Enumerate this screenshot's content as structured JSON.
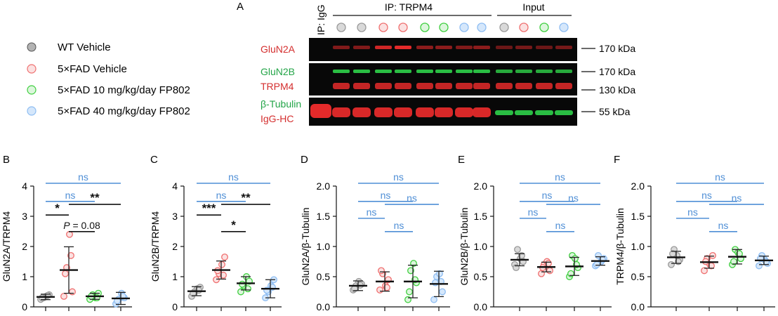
{
  "legend": [
    {
      "label": "WT Vehicle",
      "color": "#9a9a9a"
    },
    {
      "label": "5×FAD Vehicle",
      "color": "#ef6f6f"
    },
    {
      "label": "5×FAD 10 mg/kg/day FP802",
      "color": "#3fcf3f"
    },
    {
      "label": "5×FAD 40 mg/kg/day FP802",
      "color": "#8ebdf2"
    }
  ],
  "blot": {
    "panel_letter": "A",
    "ip_igg_label": "IP: IgG",
    "ip_trpm4_label": "IP: TRPM4",
    "input_label": "Input",
    "lane_groups": [
      0,
      0,
      1,
      1,
      2,
      2,
      3,
      3,
      0,
      1,
      2,
      3
    ],
    "row1": {
      "labels": [
        {
          "text": "GluN2A",
          "color": "#d42e2e"
        }
      ],
      "markers": [
        "170 kDa"
      ]
    },
    "row2": {
      "labels": [
        {
          "text": "GluN2B",
          "color": "#22a447"
        },
        {
          "text": "TRPM4",
          "color": "#d42e2e"
        }
      ],
      "markers": [
        "170 kDa",
        "130 kDa"
      ]
    },
    "row3": {
      "labels": [
        {
          "text": "β-Tubulin",
          "color": "#22a447"
        },
        {
          "text": "IgG-HC",
          "color": "#d42e2e"
        }
      ],
      "markers": [
        "55 kDa"
      ]
    }
  },
  "colors": {
    "ns": "#4f8fd6",
    "sig": "#111111",
    "blot_red": "#e42a2a",
    "blot_green": "#2fd24a"
  },
  "chart_data": [
    {
      "type": "scatter",
      "panel": "B",
      "title": "",
      "xlabel": "",
      "ylabel": "GluN2A/TRPM4",
      "ylim": [
        0,
        4
      ],
      "yticks": [
        "0",
        "1",
        "2",
        "3",
        "4"
      ],
      "categories": [
        "WT Vehicle",
        "5×FAD Vehicle",
        "5×FAD 10 mg/kg/day FP802",
        "5×FAD 40 mg/kg/day FP802"
      ],
      "mean": [
        0.33,
        1.22,
        0.35,
        0.28
      ],
      "sd": [
        0.09,
        0.77,
        0.1,
        0.2
      ],
      "points": [
        [
          0.25,
          0.3,
          0.35,
          0.4,
          0.3,
          0.38
        ],
        [
          0.35,
          1.3,
          2.4,
          0.5,
          1.1,
          1.7
        ],
        [
          0.25,
          0.4,
          0.3,
          0.45,
          0.35,
          0.3
        ],
        [
          0.1,
          0.25,
          0.45,
          0.3,
          0.2,
          0.35
        ]
      ],
      "comparisons": [
        {
          "g1": 0,
          "g2": 3,
          "label": "ns",
          "kind": "ns",
          "y": 4.0
        },
        {
          "g1": 0,
          "g2": 2,
          "label": "ns",
          "kind": "ns",
          "y": 3.4
        },
        {
          "g1": 0,
          "g2": 1,
          "label": "*",
          "kind": "sig",
          "y": 2.95
        },
        {
          "g1": 1,
          "g2": 3,
          "label": "**",
          "kind": "sig",
          "y": 3.3
        },
        {
          "g1": 1,
          "g2": 2,
          "label": "P = 0.08",
          "kind": "sig",
          "y": 2.4
        }
      ]
    },
    {
      "type": "scatter",
      "panel": "C",
      "title": "",
      "xlabel": "",
      "ylabel": "GluN2B/TRPM4",
      "ylim": [
        0,
        4
      ],
      "yticks": [
        "0",
        "1",
        "2",
        "3",
        "4"
      ],
      "categories": [
        "WT Vehicle",
        "5×FAD Vehicle",
        "5×FAD 10 mg/kg/day FP802",
        "5×FAD 40 mg/kg/day FP802"
      ],
      "mean": [
        0.52,
        1.22,
        0.78,
        0.6
      ],
      "sd": [
        0.15,
        0.3,
        0.22,
        0.3
      ],
      "points": [
        [
          0.35,
          0.5,
          0.6,
          0.65,
          0.45,
          0.55
        ],
        [
          0.9,
          1.1,
          1.4,
          1.65,
          1.2,
          1.05
        ],
        [
          0.5,
          0.7,
          1.0,
          0.85,
          0.75,
          0.6
        ],
        [
          0.3,
          0.5,
          0.7,
          0.9,
          0.55,
          0.65
        ]
      ],
      "comparisons": [
        {
          "g1": 0,
          "g2": 3,
          "label": "ns",
          "kind": "ns",
          "y": 4.0
        },
        {
          "g1": 0,
          "g2": 2,
          "label": "ns",
          "kind": "ns",
          "y": 3.4
        },
        {
          "g1": 0,
          "g2": 1,
          "label": "***",
          "kind": "sig",
          "y": 2.95
        },
        {
          "g1": 1,
          "g2": 3,
          "label": "**",
          "kind": "sig",
          "y": 3.3
        },
        {
          "g1": 1,
          "g2": 2,
          "label": "*",
          "kind": "sig",
          "y": 2.4
        }
      ]
    },
    {
      "type": "scatter",
      "panel": "D",
      "title": "",
      "xlabel": "",
      "ylabel": "GluN2A/β-Tubulin",
      "ylim": [
        0,
        2
      ],
      "yticks": [
        "0.0",
        "0.5",
        "1.0",
        "1.5",
        "2.0"
      ],
      "categories": [
        "WT Vehicle",
        "5×FAD Vehicle",
        "5×FAD 10 mg/kg/day FP802",
        "5×FAD 40 mg/kg/day FP802"
      ],
      "mean": [
        0.35,
        0.42,
        0.42,
        0.38
      ],
      "sd": [
        0.08,
        0.16,
        0.27,
        0.21
      ],
      "points": [
        [
          0.28,
          0.35,
          0.42,
          0.38,
          0.3,
          0.36
        ],
        [
          0.28,
          0.55,
          0.35,
          0.45,
          0.6,
          0.32
        ],
        [
          0.12,
          0.6,
          0.72,
          0.4,
          0.25,
          0.45
        ],
        [
          0.12,
          0.5,
          0.55,
          0.25,
          0.4,
          0.42
        ]
      ],
      "comparisons": [
        {
          "g1": 0,
          "g2": 3,
          "label": "ns",
          "kind": "ns",
          "y": 2.0
        },
        {
          "g1": 0,
          "g2": 2,
          "label": "ns",
          "kind": "ns",
          "y": 1.7
        },
        {
          "g1": 0,
          "g2": 1,
          "label": "ns",
          "kind": "ns",
          "y": 1.42
        },
        {
          "g1": 1,
          "g2": 3,
          "label": "ns",
          "kind": "ns",
          "y": 1.65
        },
        {
          "g1": 1,
          "g2": 2,
          "label": "ns",
          "kind": "ns",
          "y": 1.2
        }
      ]
    },
    {
      "type": "scatter",
      "panel": "E",
      "title": "",
      "xlabel": "",
      "ylabel": "GluN2B/β-Tubulin",
      "ylim": [
        0,
        2
      ],
      "yticks": [
        "0.0",
        "0.5",
        "1.0",
        "1.5",
        "2.0"
      ],
      "categories": [
        "WT Vehicle",
        "5×FAD Vehicle",
        "5×FAD 10 mg/kg/day FP802",
        "5×FAD 40 mg/kg/day FP802"
      ],
      "mean": [
        0.78,
        0.66,
        0.67,
        0.76
      ],
      "sd": [
        0.1,
        0.08,
        0.15,
        0.07
      ],
      "points": [
        [
          0.7,
          0.95,
          0.8,
          0.75,
          0.65,
          0.85
        ],
        [
          0.55,
          0.7,
          0.75,
          0.6,
          0.65,
          0.72
        ],
        [
          0.5,
          0.85,
          0.8,
          0.65,
          0.55,
          0.7
        ],
        [
          0.68,
          0.85,
          0.75,
          0.8,
          0.7,
          0.78
        ]
      ],
      "comparisons": [
        {
          "g1": 0,
          "g2": 3,
          "label": "ns",
          "kind": "ns",
          "y": 2.0
        },
        {
          "g1": 0,
          "g2": 2,
          "label": "ns",
          "kind": "ns",
          "y": 1.7
        },
        {
          "g1": 0,
          "g2": 1,
          "label": "ns",
          "kind": "ns",
          "y": 1.42
        },
        {
          "g1": 1,
          "g2": 3,
          "label": "ns",
          "kind": "ns",
          "y": 1.65
        },
        {
          "g1": 1,
          "g2": 2,
          "label": "ns",
          "kind": "ns",
          "y": 1.2
        }
      ]
    },
    {
      "type": "scatter",
      "panel": "F",
      "title": "",
      "xlabel": "",
      "ylabel": "TRPM4/β-Tubulin",
      "ylim": [
        0,
        2
      ],
      "yticks": [
        "0.0",
        "0.5",
        "1.0",
        "1.5",
        "2.0"
      ],
      "categories": [
        "WT Vehicle",
        "5×FAD Vehicle",
        "5×FAD 10 mg/kg/day FP802",
        "5×FAD 40 mg/kg/day FP802"
      ],
      "mean": [
        0.82,
        0.74,
        0.83,
        0.77
      ],
      "sd": [
        0.1,
        0.1,
        0.12,
        0.07
      ],
      "points": [
        [
          0.7,
          0.95,
          0.85,
          0.78,
          0.88,
          0.75
        ],
        [
          0.6,
          0.8,
          0.7,
          0.85,
          0.75,
          0.68
        ],
        [
          0.7,
          0.95,
          0.9,
          0.8,
          0.75,
          0.88
        ],
        [
          0.68,
          0.85,
          0.78,
          0.72,
          0.8,
          0.75
        ]
      ],
      "comparisons": [
        {
          "g1": 0,
          "g2": 3,
          "label": "ns",
          "kind": "ns",
          "y": 2.0
        },
        {
          "g1": 0,
          "g2": 2,
          "label": "ns",
          "kind": "ns",
          "y": 1.7
        },
        {
          "g1": 0,
          "g2": 1,
          "label": "ns",
          "kind": "ns",
          "y": 1.42
        },
        {
          "g1": 1,
          "g2": 3,
          "label": "ns",
          "kind": "ns",
          "y": 1.65
        },
        {
          "g1": 1,
          "g2": 2,
          "label": "ns",
          "kind": "ns",
          "y": 1.2
        }
      ]
    }
  ]
}
